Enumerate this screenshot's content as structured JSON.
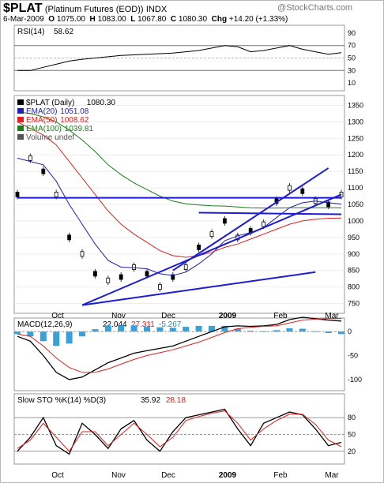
{
  "header": {
    "symbol": "$PLAT",
    "name": "(Platinum Futures (EOD))",
    "exchange": "INDX",
    "watermark": "@StockCharts.com",
    "date": "6-Mar-2009",
    "o_label": "O",
    "o": "1075.00",
    "h_label": "H",
    "h": "1083.00",
    "l_label": "L",
    "l": "1067.80",
    "c_label": "C",
    "c": "1080.30",
    "chg_label": "Chg",
    "chg": "+14.20 (+1.33%)"
  },
  "rsi": {
    "label": "RSI(14)",
    "value": "58.62",
    "ticks": [
      "90",
      "70",
      "50",
      "30",
      "10"
    ]
  },
  "price": {
    "legend": [
      {
        "label": "$PLAT (Daily)",
        "value": "1080.30",
        "color": "#000000"
      },
      {
        "label": "EMA(20)",
        "value": "1051.08",
        "color": "#1f1fb4"
      },
      {
        "label": "EMA(50)",
        "value": "1008.62",
        "color": "#e02020"
      },
      {
        "label": "EMA(100)",
        "value": "1039.81",
        "color": "#1a7f1a"
      },
      {
        "label": "Volume undef",
        "value": "",
        "color": "#555555"
      }
    ],
    "ticks": [
      "1350",
      "1300",
      "1250",
      "1200",
      "1150",
      "1100",
      "1050",
      "1000",
      "950",
      "900",
      "850",
      "800",
      "750"
    ]
  },
  "macd": {
    "label": "MACD(12,26,9)",
    "v1": "22.044",
    "v2": "27.311",
    "v3": "-5.267",
    "ticks": [
      "0",
      "-50",
      "-100"
    ]
  },
  "sto": {
    "label": "Slow STO %K(14) %D(3)",
    "v1": "35.92",
    "v2": "28.18",
    "ticks": [
      "80",
      "50",
      "20"
    ]
  },
  "xaxis": {
    "labels": [
      "Oct",
      "Nov",
      "Dec",
      "2009",
      "Feb",
      "Mar"
    ]
  },
  "chart_data": {
    "type": "line",
    "x": [
      "2008-09-15",
      "2008-09-22",
      "2008-09-29",
      "2008-10-06",
      "2008-10-13",
      "2008-10-20",
      "2008-10-27",
      "2008-11-03",
      "2008-11-10",
      "2008-11-17",
      "2008-11-24",
      "2008-12-01",
      "2008-12-08",
      "2008-12-15",
      "2008-12-22",
      "2008-12-29",
      "2009-01-05",
      "2009-01-12",
      "2009-01-19",
      "2009-01-26",
      "2009-02-02",
      "2009-02-09",
      "2009-02-16",
      "2009-02-23",
      "2009-03-02",
      "2009-03-06"
    ],
    "series": [
      {
        "name": "$PLAT (Daily)",
        "values": [
          1080,
          1190,
          1150,
          1080,
          950,
          900,
          840,
          820,
          830,
          860,
          840,
          800,
          830,
          860,
          920,
          960,
          1000,
          950,
          970,
          990,
          1060,
          1100,
          1090,
          1060,
          1050,
          1080
        ]
      },
      {
        "name": "EMA(20)",
        "values": [
          1190,
          1180,
          1170,
          1120,
          1050,
          990,
          930,
          880,
          860,
          858,
          855,
          840,
          835,
          845,
          870,
          900,
          940,
          955,
          965,
          980,
          1010,
          1040,
          1055,
          1060,
          1055,
          1051
        ]
      },
      {
        "name": "EMA(50)",
        "values": [
          1300,
          1280,
          1260,
          1230,
          1180,
          1130,
          1080,
          1030,
          990,
          960,
          935,
          910,
          895,
          890,
          895,
          905,
          920,
          930,
          945,
          960,
          975,
          990,
          1000,
          1005,
          1008,
          1009
        ]
      },
      {
        "name": "EMA(100)",
        "values": [
          1330,
          1325,
          1315,
          1300,
          1275,
          1245,
          1210,
          1170,
          1140,
          1115,
          1095,
          1075,
          1060,
          1052,
          1048,
          1046,
          1045,
          1042,
          1040,
          1039,
          1039,
          1040,
          1040,
          1040,
          1040,
          1040
        ]
      }
    ],
    "ylim": [
      725,
      1375
    ],
    "y_ticks": [
      750,
      800,
      850,
      900,
      950,
      1000,
      1050,
      1100,
      1150,
      1200,
      1250,
      1300,
      1350
    ],
    "x_labels": [
      "Oct",
      "Nov",
      "Dec",
      "2009",
      "Feb",
      "Mar"
    ],
    "panels": {
      "rsi": {
        "label": "RSI(14)",
        "last": 58.62,
        "ylim": [
          0,
          100
        ],
        "ticks": [
          10,
          30,
          50,
          70,
          90
        ],
        "values": [
          30,
          30,
          35,
          40,
          45,
          48,
          50,
          52,
          54,
          55,
          56,
          57,
          58,
          60,
          62,
          66,
          70,
          68,
          60,
          62,
          66,
          70,
          64,
          60,
          56,
          58.62
        ]
      },
      "macd": {
        "label": "MACD(12,26,9)",
        "macd": 22.044,
        "signal": 27.311,
        "hist": -5.267,
        "ylim": [
          -120,
          25
        ],
        "ticks": [
          -100,
          -50,
          0
        ],
        "macd_values": [
          -10,
          -20,
          -50,
          -85,
          -100,
          -95,
          -80,
          -65,
          -55,
          -45,
          -40,
          -35,
          -30,
          -20,
          -10,
          0,
          10,
          12,
          11,
          12,
          15,
          25,
          30,
          27,
          24,
          22.044
        ],
        "signal_values": [
          -5,
          -10,
          -30,
          -55,
          -75,
          -85,
          -85,
          -78,
          -68,
          -58,
          -50,
          -44,
          -38,
          -30,
          -22,
          -12,
          -2,
          6,
          9,
          11,
          12,
          18,
          24,
          26,
          27,
          27.311
        ]
      },
      "sto": {
        "label": "Slow STO %K(14) %D(3)",
        "k": 35.92,
        "d": 28.18,
        "ylim": [
          0,
          100
        ],
        "ticks": [
          20,
          50,
          80
        ],
        "k_values": [
          20,
          45,
          80,
          30,
          15,
          70,
          50,
          25,
          60,
          75,
          40,
          20,
          55,
          80,
          85,
          90,
          95,
          60,
          30,
          70,
          80,
          90,
          85,
          60,
          30,
          35.92
        ],
        "d_values": [
          25,
          40,
          70,
          45,
          20,
          55,
          55,
          30,
          50,
          70,
          50,
          28,
          45,
          75,
          82,
          88,
          92,
          70,
          40,
          60,
          75,
          86,
          86,
          68,
          40,
          28.18
        ]
      }
    }
  }
}
